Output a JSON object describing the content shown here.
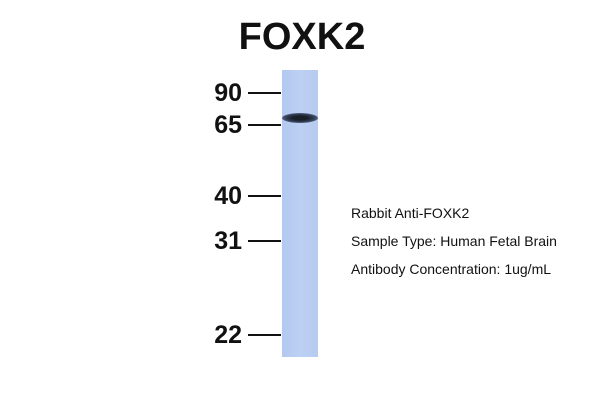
{
  "title": "FOXK2",
  "markers": [
    {
      "label": "90",
      "kda": 90
    },
    {
      "label": "65",
      "kda": 65
    },
    {
      "label": "40",
      "kda": 40
    },
    {
      "label": "31",
      "kda": 31
    },
    {
      "label": "22",
      "kda": 22
    }
  ],
  "band_kda": 68,
  "info": {
    "antibody": "Rabbit Anti-FOXK2",
    "sample": "Sample Type: Human Fetal Brain",
    "concentration": "Antibody Concentration: 1ug/mL"
  },
  "colors": {
    "lane": "#b8cdf1",
    "band": "#1a1f2a"
  }
}
